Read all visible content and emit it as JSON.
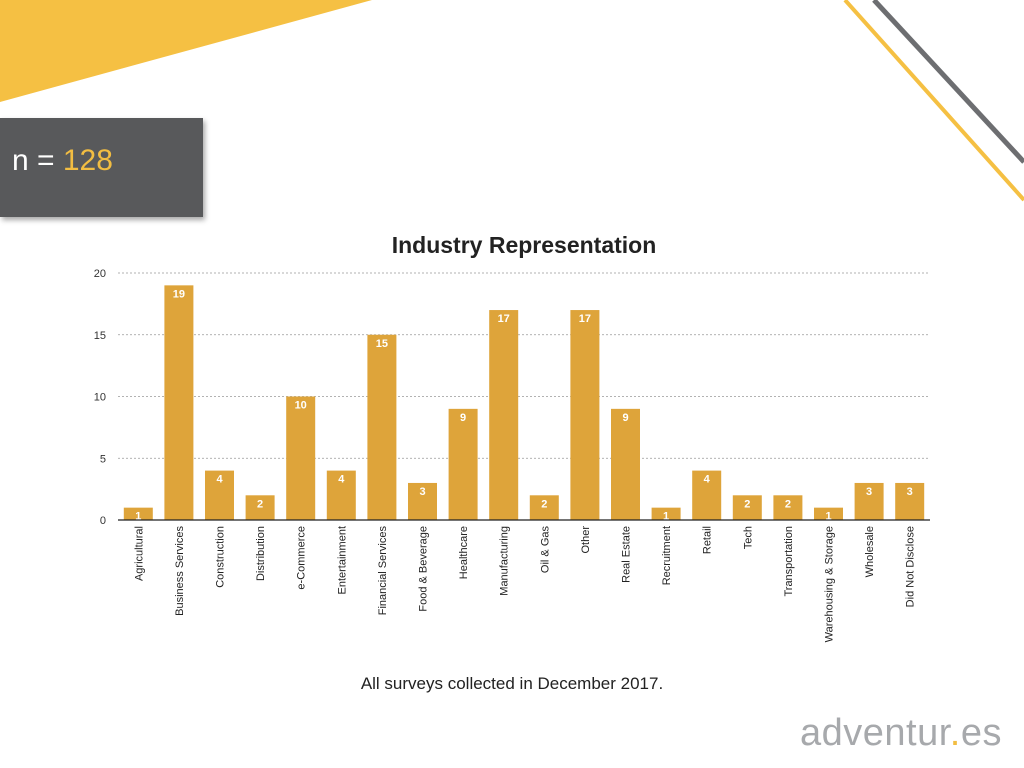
{
  "badge": {
    "prefix": "n = ",
    "value": "128"
  },
  "footnote": "All surveys collected in December 2017.",
  "logo": {
    "part1": "adventur",
    "dot": ".",
    "part2": "es"
  },
  "colors": {
    "bar": "#dea43a",
    "accent_yellow": "#f5c043",
    "dark_gray": "#58595b",
    "grid": "#999999"
  },
  "chart_data": {
    "type": "bar",
    "title": "Industry Representation",
    "categories": [
      "Agricultural",
      "Business Services",
      "Construction",
      "Distribution",
      "e-Commerce",
      "Entertainment",
      "Financial Services",
      "Food & Beverage",
      "Healthcare",
      "Manufacturing",
      "Oil & Gas",
      "Other",
      "Real Estate",
      "Recruitment",
      "Retail",
      "Tech",
      "Transportation",
      "Warehousing & Storage",
      "Wholesale",
      "Did Not Disclose"
    ],
    "values": [
      1,
      19,
      4,
      2,
      10,
      4,
      15,
      3,
      9,
      17,
      2,
      17,
      9,
      1,
      4,
      2,
      2,
      1,
      3,
      3
    ],
    "ylim": [
      0,
      20
    ],
    "yticks": [
      0,
      5,
      10,
      15,
      20
    ],
    "grid": true,
    "legend": "none",
    "data_labels": true
  }
}
